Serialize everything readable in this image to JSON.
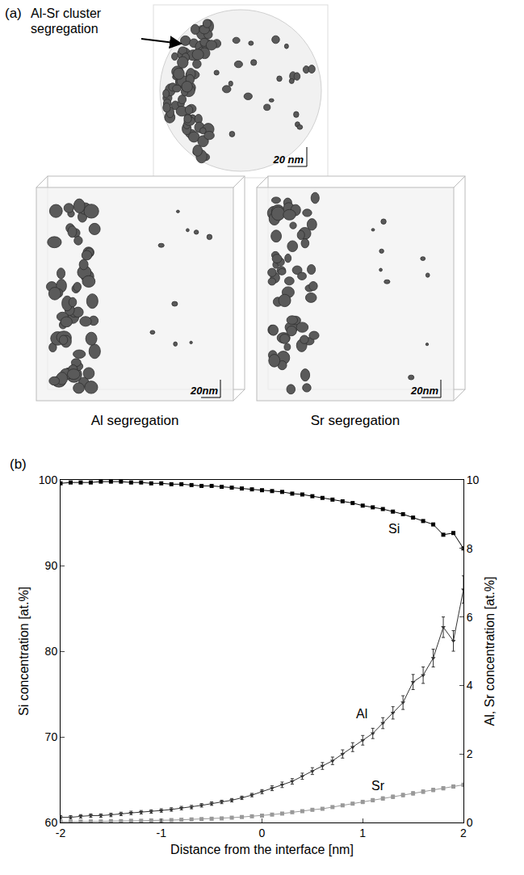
{
  "figure_a": {
    "panel_label": "(a)",
    "top_image": {
      "annotation": "Al-Sr cluster segregation",
      "scale_bar": "20 nm"
    },
    "images": [
      {
        "label": "Al segregation",
        "scale_bar": "20nm"
      },
      {
        "label": "Sr segregation",
        "scale_bar": "20nm"
      }
    ]
  },
  "chart_data": {
    "type": "line",
    "panel_label": "(b)",
    "x_label": "Distance from the interface [nm]",
    "y_label": "Si concentration [at.%]",
    "y2_label": "Al, Sr concentration [at.%]",
    "x": [
      -2.0,
      -1.9,
      -1.8,
      -1.7,
      -1.6,
      -1.5,
      -1.4,
      -1.3,
      -1.2,
      -1.1,
      -1.0,
      -0.9,
      -0.8,
      -0.7,
      -0.6,
      -0.5,
      -0.4,
      -0.3,
      -0.2,
      -0.1,
      0.0,
      0.1,
      0.2,
      0.3,
      0.4,
      0.5,
      0.6,
      0.7,
      0.8,
      0.9,
      1.0,
      1.1,
      1.2,
      1.3,
      1.4,
      1.5,
      1.6,
      1.7,
      1.8,
      1.9,
      2.0
    ],
    "series": [
      {
        "name": "Si",
        "color": "#000000",
        "marker": "square",
        "axis": "y",
        "values": [
          99.6,
          99.7,
          99.7,
          99.7,
          99.8,
          99.8,
          99.8,
          99.7,
          99.7,
          99.6,
          99.6,
          99.5,
          99.5,
          99.4,
          99.3,
          99.3,
          99.2,
          99.1,
          99.0,
          98.9,
          98.8,
          98.7,
          98.6,
          98.4,
          98.3,
          98.1,
          97.9,
          97.7,
          97.5,
          97.3,
          97.0,
          96.8,
          96.6,
          96.3,
          96.0,
          95.6,
          95.2,
          94.8,
          93.6,
          93.8,
          92.0
        ]
      },
      {
        "name": "Al",
        "color": "#333333",
        "marker": "triangle-down",
        "axis": "y2",
        "values": [
          0.15,
          0.15,
          0.18,
          0.2,
          0.2,
          0.22,
          0.25,
          0.28,
          0.3,
          0.32,
          0.35,
          0.38,
          0.42,
          0.45,
          0.5,
          0.55,
          0.6,
          0.65,
          0.72,
          0.8,
          0.9,
          1.0,
          1.1,
          1.2,
          1.35,
          1.5,
          1.65,
          1.8,
          2.0,
          2.2,
          2.4,
          2.6,
          2.9,
          3.2,
          3.5,
          4.1,
          4.3,
          4.8,
          5.7,
          5.3,
          6.8
        ],
        "error": [
          0.05,
          0.05,
          0.05,
          0.05,
          0.05,
          0.05,
          0.05,
          0.05,
          0.05,
          0.05,
          0.05,
          0.05,
          0.05,
          0.05,
          0.05,
          0.05,
          0.05,
          0.05,
          0.05,
          0.05,
          0.06,
          0.07,
          0.08,
          0.08,
          0.09,
          0.1,
          0.1,
          0.11,
          0.12,
          0.13,
          0.14,
          0.15,
          0.16,
          0.18,
          0.2,
          0.22,
          0.24,
          0.26,
          0.3,
          0.3,
          0.4
        ]
      },
      {
        "name": "Sr",
        "color": "#999999",
        "marker": "square",
        "axis": "y2",
        "values": [
          0.02,
          0.02,
          0.03,
          0.03,
          0.03,
          0.04,
          0.04,
          0.05,
          0.05,
          0.06,
          0.06,
          0.07,
          0.08,
          0.09,
          0.1,
          0.11,
          0.12,
          0.14,
          0.16,
          0.18,
          0.2,
          0.23,
          0.26,
          0.3,
          0.33,
          0.37,
          0.4,
          0.45,
          0.5,
          0.55,
          0.6,
          0.65,
          0.7,
          0.75,
          0.8,
          0.85,
          0.9,
          0.95,
          1.0,
          1.05,
          1.1
        ],
        "error": [
          0.02,
          0.02,
          0.02,
          0.02,
          0.02,
          0.02,
          0.02,
          0.02,
          0.02,
          0.02,
          0.02,
          0.02,
          0.02,
          0.02,
          0.02,
          0.02,
          0.02,
          0.02,
          0.02,
          0.02,
          0.03,
          0.03,
          0.03,
          0.03,
          0.03,
          0.03,
          0.03,
          0.03,
          0.03,
          0.03,
          0.05,
          0.05,
          0.05,
          0.05,
          0.05,
          0.05,
          0.05,
          0.05,
          0.05,
          0.05,
          0.05
        ]
      }
    ],
    "xlim": [
      -2,
      2
    ],
    "xticks": [
      -2,
      -1,
      0,
      1,
      2
    ],
    "ylim": [
      60,
      100
    ],
    "yticks": [
      60,
      70,
      80,
      90,
      100
    ],
    "y2lim": [
      0,
      10
    ],
    "y2ticks": [
      0,
      2,
      4,
      6,
      8,
      10
    ],
    "grid": false
  }
}
